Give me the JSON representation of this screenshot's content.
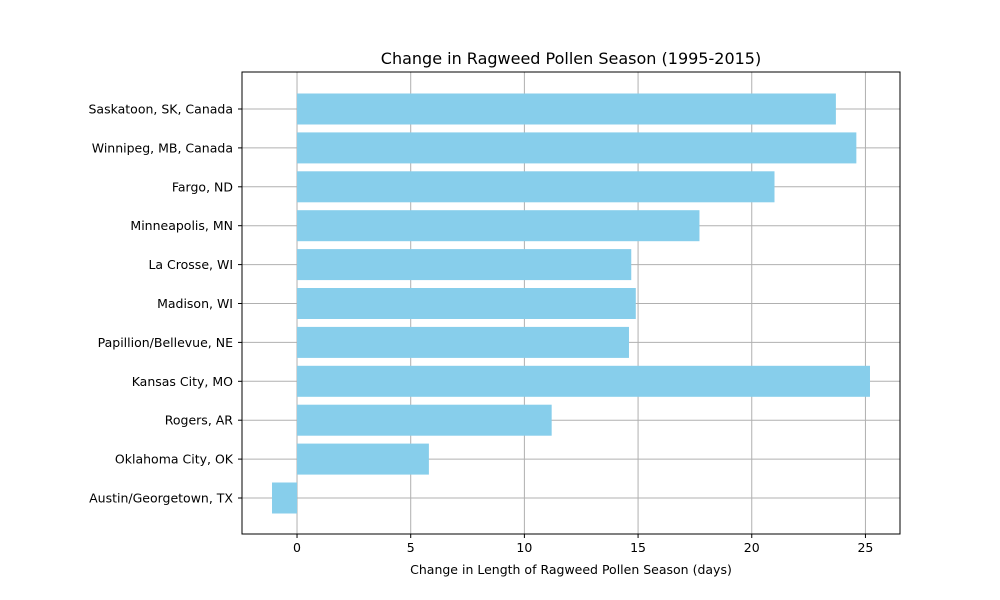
{
  "chart_data": {
    "type": "bar",
    "orientation": "horizontal",
    "title": "Change in Ragweed Pollen Season (1995-2015)",
    "xlabel": "Change in Length of Ragweed Pollen Season (days)",
    "ylabel": "",
    "categories": [
      "Saskatoon, SK, Canada",
      "Winnipeg, MB, Canada",
      "Fargo, ND",
      "Minneapolis, MN",
      "La Crosse, WI",
      "Madison, WI",
      "Papillion/Bellevue, NE",
      "Kansas City, MO",
      "Rogers, AR",
      "Oklahoma City, OK",
      "Austin/Georgetown, TX"
    ],
    "values": [
      23.7,
      24.6,
      21.0,
      17.7,
      14.7,
      14.9,
      14.6,
      25.2,
      11.2,
      5.8,
      -1.1
    ],
    "xlim": [
      -2.42,
      26.52
    ],
    "xticks": [
      0,
      5,
      10,
      15,
      20,
      25
    ],
    "grid": true,
    "bar_color": "#87ceeb"
  }
}
